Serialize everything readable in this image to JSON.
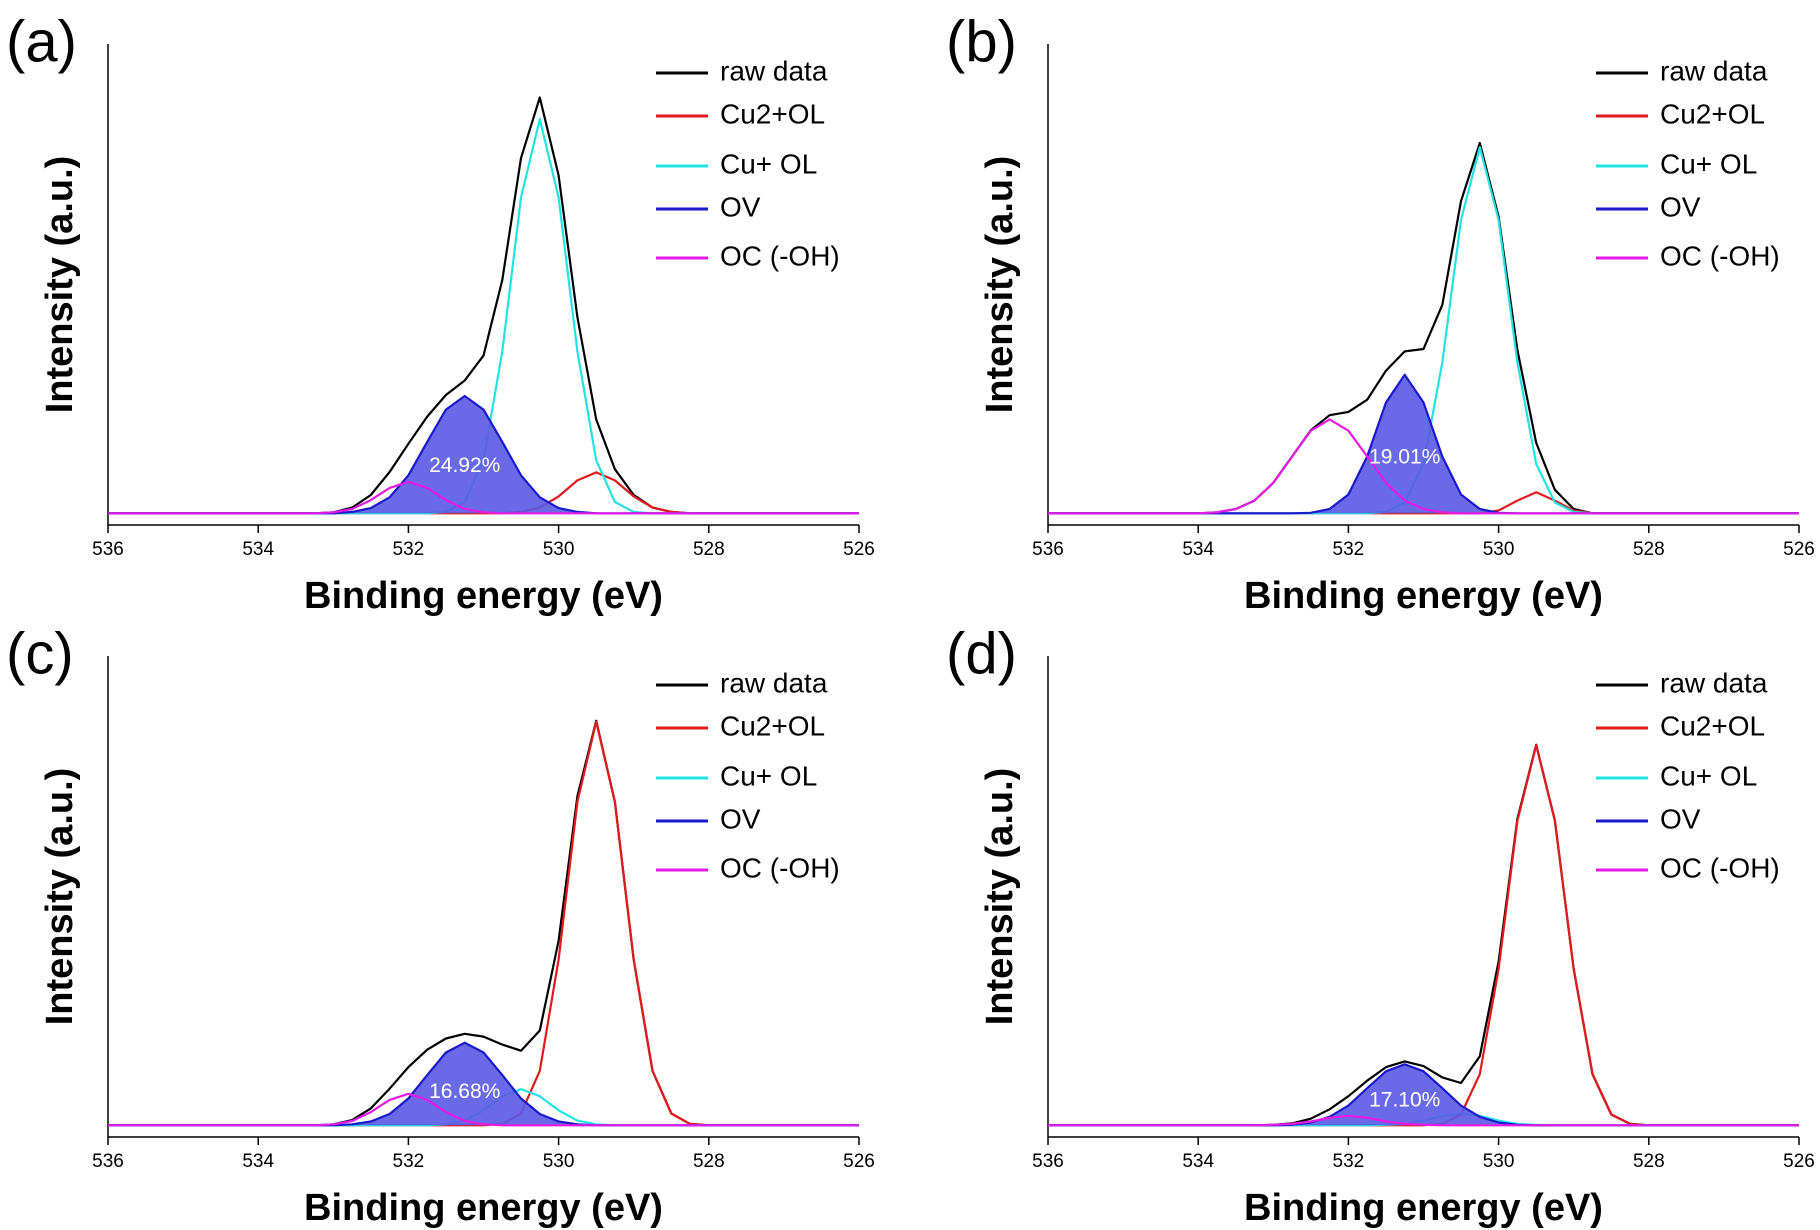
{
  "chart_data": [
    {
      "type": "line",
      "panel_label": "(a)",
      "xlabel": "Binding energy (eV)",
      "ylabel": "Intensity (a.u.)",
      "annotation": "24.92%",
      "xlim": [
        536,
        526
      ],
      "xticks": [
        536,
        534,
        532,
        530,
        528,
        526
      ],
      "ylim": [
        -2.5,
        100
      ],
      "legend": "upper right",
      "x": [
        536,
        535.75,
        535.5,
        535.25,
        535,
        534.75,
        534.5,
        534.25,
        534,
        533.75,
        533.5,
        533.25,
        533,
        532.75,
        532.5,
        532.25,
        532,
        531.75,
        531.5,
        531.25,
        531,
        530.75,
        530.5,
        530.25,
        530,
        529.75,
        529.5,
        529.25,
        529,
        528.75,
        528.5,
        528.25,
        528,
        527.75,
        527.5,
        527.25,
        527,
        526.75,
        526.5,
        526.25,
        526
      ],
      "series": [
        {
          "name": "raw data",
          "color": "#000000",
          "values": [
            0,
            0,
            0,
            0,
            0,
            0,
            0,
            0,
            0,
            0,
            0,
            0,
            0.2,
            1.2,
            3.9,
            8.8,
            14.8,
            20.6,
            25.2,
            28.3,
            33.6,
            49.7,
            75.7,
            88.6,
            72.0,
            41.8,
            20.0,
            9.4,
            3.9,
            1.2,
            0.3,
            0,
            0,
            0,
            0,
            0,
            0,
            0,
            0,
            0,
            0
          ]
        },
        {
          "name": "Cu2+OL",
          "color": "#e31a1c",
          "values": [
            0,
            0,
            0,
            0,
            0,
            0,
            0,
            0,
            0,
            0,
            0,
            0,
            0,
            0,
            0,
            0,
            0,
            0,
            0,
            0,
            0,
            0,
            0.3,
            1.2,
            3.6,
            7.0,
            8.7,
            7.0,
            3.6,
            1.2,
            0.3,
            0,
            0,
            0,
            0,
            0,
            0,
            0,
            0,
            0,
            0
          ]
        },
        {
          "name": "Cu+ OL",
          "color": "#22e3e3",
          "values": [
            0,
            0,
            0,
            0,
            0,
            0,
            0,
            0,
            0,
            0,
            0,
            0,
            0,
            0,
            0,
            0,
            0,
            0,
            0.3,
            2.4,
            11.3,
            34.5,
            67.3,
            84,
            67.3,
            34.5,
            11.3,
            2.4,
            0.3,
            0,
            0,
            0,
            0,
            0,
            0,
            0,
            0,
            0,
            0,
            0,
            0
          ]
        },
        {
          "name": "OV",
          "color": "#1a1acc",
          "fill": "#5a5ae6",
          "values": [
            0,
            0,
            0,
            0,
            0,
            0,
            0,
            0,
            0,
            0,
            0,
            0,
            0,
            0.3,
            1.1,
            3.4,
            8.1,
            15.2,
            22.1,
            25,
            22.1,
            15.2,
            8.1,
            3.4,
            1.1,
            0.3,
            0,
            0,
            0,
            0,
            0,
            0,
            0,
            0,
            0,
            0,
            0,
            0,
            0,
            0,
            0
          ]
        },
        {
          "name": "OC (-OH)",
          "color": "#e619e6",
          "values": [
            0,
            0,
            0,
            0,
            0,
            0,
            0,
            0,
            0,
            0,
            0,
            0,
            0.2,
            0.9,
            2.8,
            5.4,
            6.7,
            5.4,
            2.8,
            0.9,
            0.2,
            0,
            0,
            0,
            0,
            0,
            0,
            0,
            0,
            0,
            0,
            0,
            0,
            0,
            0,
            0,
            0,
            0,
            0,
            0,
            0
          ]
        }
      ]
    },
    {
      "type": "line",
      "panel_label": "(b)",
      "xlabel": "Binding energy (eV)",
      "ylabel": "Intensity (a.u.)",
      "annotation": "19.01%",
      "xlim": [
        536,
        526
      ],
      "xticks": [
        536,
        534,
        532,
        530,
        528,
        526
      ],
      "ylim": [
        -2.5,
        100
      ],
      "legend": "upper right",
      "x": [
        536,
        535.75,
        535.5,
        535.25,
        535,
        534.75,
        534.5,
        534.25,
        534,
        533.75,
        533.5,
        533.25,
        533,
        532.75,
        532.5,
        532.25,
        532,
        531.75,
        531.5,
        531.25,
        531,
        530.75,
        530.5,
        530.25,
        530,
        529.75,
        529.5,
        529.25,
        529,
        528.75,
        528.5,
        528.25,
        528,
        527.75,
        527.5,
        527.25,
        527,
        526.75,
        526.5,
        526.25,
        526
      ],
      "series": [
        {
          "name": "raw data",
          "color": "#000000",
          "values": [
            0,
            0,
            0,
            0,
            0,
            0,
            0,
            0,
            0,
            0.2,
            0.9,
            2.7,
            6.5,
            12.1,
            17.7,
            20.9,
            21.6,
            24.2,
            30.4,
            34.5,
            35.0,
            44.4,
            66.5,
            78.9,
            63.2,
            34.8,
            15.0,
            5.0,
            0.9,
            0,
            0,
            0,
            0,
            0,
            0,
            0,
            0,
            0,
            0,
            0,
            0
          ]
        },
        {
          "name": "Cu2+OL",
          "color": "#e31a1c",
          "values": [
            0,
            0,
            0,
            0,
            0,
            0,
            0,
            0,
            0,
            0,
            0,
            0,
            0,
            0,
            0,
            0,
            0,
            0,
            0,
            0,
            0,
            0,
            0,
            0,
            0.6,
            2.7,
            4.5,
            2.7,
            0.6,
            0,
            0,
            0,
            0,
            0,
            0,
            0,
            0,
            0,
            0,
            0,
            0
          ]
        },
        {
          "name": "Cu+ OL",
          "color": "#22e3e3",
          "values": [
            0,
            0,
            0,
            0,
            0,
            0,
            0,
            0,
            0,
            0,
            0,
            0,
            0,
            0,
            0,
            0,
            0,
            0,
            0.3,
            2.3,
            10.5,
            32.1,
            62.5,
            78,
            62.5,
            32.1,
            10.5,
            2.3,
            0.3,
            0,
            0,
            0,
            0,
            0,
            0,
            0,
            0,
            0,
            0,
            0,
            0
          ]
        },
        {
          "name": "OV",
          "color": "#1a1acc",
          "fill": "#5a5ae6",
          "values": [
            0,
            0,
            0,
            0,
            0,
            0,
            0,
            0,
            0,
            0,
            0,
            0,
            0,
            0,
            0.1,
            0.9,
            4.0,
            12.1,
            23.6,
            29.5,
            23.6,
            12.1,
            4.0,
            0.9,
            0.1,
            0,
            0,
            0,
            0,
            0,
            0,
            0,
            0,
            0,
            0,
            0,
            0,
            0,
            0,
            0,
            0
          ]
        },
        {
          "name": "OC (-OH)",
          "color": "#e619e6",
          "values": [
            0,
            0,
            0,
            0,
            0,
            0,
            0,
            0,
            0,
            0.2,
            0.9,
            2.7,
            6.5,
            12.1,
            17.6,
            20,
            17.6,
            12.1,
            6.5,
            2.7,
            0.9,
            0.2,
            0,
            0,
            0,
            0,
            0,
            0,
            0,
            0,
            0,
            0,
            0,
            0,
            0,
            0,
            0,
            0,
            0,
            0,
            0
          ]
        }
      ]
    },
    {
      "type": "line",
      "panel_label": "(c)",
      "xlabel": "Binding energy (eV)",
      "ylabel": "Intensity (a.u.)",
      "annotation": "16.68%",
      "xlim": [
        536,
        526
      ],
      "xticks": [
        536,
        534,
        532,
        530,
        528,
        526
      ],
      "ylim": [
        -2.5,
        100
      ],
      "legend": "upper right",
      "x": [
        536,
        535.75,
        535.5,
        535.25,
        535,
        534.75,
        534.5,
        534.25,
        534,
        533.75,
        533.5,
        533.25,
        533,
        532.75,
        532.5,
        532.25,
        532,
        531.75,
        531.5,
        531.25,
        531,
        530.75,
        530.5,
        530.25,
        530,
        529.75,
        529.5,
        529.25,
        529,
        528.75,
        528.5,
        528.25,
        528,
        527.75,
        527.5,
        527.25,
        527,
        526.75,
        526.5,
        526.25,
        526
      ],
      "series": [
        {
          "name": "raw data",
          "color": "#000000",
          "values": [
            0,
            0,
            0,
            0,
            0,
            0,
            0,
            0,
            0,
            0,
            0,
            0,
            0.2,
            1.1,
            3.6,
            7.8,
            12.4,
            16.1,
            18.5,
            19.5,
            18.9,
            17.2,
            15.9,
            20.2,
            39.3,
            70.1,
            86.2,
            68.9,
            35.3,
            11.6,
            2.5,
            0.3,
            0,
            0,
            0,
            0,
            0,
            0,
            0,
            0,
            0
          ]
        },
        {
          "name": "Cu2+OL",
          "color": "#e31a1c",
          "values": [
            0,
            0,
            0,
            0,
            0,
            0,
            0,
            0,
            0,
            0,
            0,
            0,
            0,
            0,
            0,
            0,
            0,
            0,
            0,
            0,
            0,
            0.3,
            2.5,
            11.6,
            35.3,
            68.9,
            86,
            68.9,
            35.3,
            11.6,
            2.5,
            0.3,
            0,
            0,
            0,
            0,
            0,
            0,
            0,
            0,
            0
          ]
        },
        {
          "name": "Cu+ OL",
          "color": "#22e3e3",
          "values": [
            0,
            0,
            0,
            0,
            0,
            0,
            0,
            0,
            0,
            0,
            0,
            0,
            0,
            0,
            0,
            0,
            0,
            0,
            0.2,
            1.0,
            3.2,
            6.2,
            7.7,
            6.2,
            3.2,
            1.0,
            0.2,
            0,
            0,
            0,
            0,
            0,
            0,
            0,
            0,
            0,
            0,
            0,
            0,
            0,
            0
          ]
        },
        {
          "name": "OV",
          "color": "#1a1acc",
          "fill": "#5a5ae6",
          "values": [
            0,
            0,
            0,
            0,
            0,
            0,
            0,
            0,
            0,
            0,
            0,
            0,
            0,
            0.2,
            0.8,
            2.4,
            5.7,
            10.7,
            15.5,
            17.6,
            15.5,
            10.7,
            5.7,
            2.4,
            0.8,
            0.2,
            0,
            0,
            0,
            0,
            0,
            0,
            0,
            0,
            0,
            0,
            0,
            0,
            0,
            0,
            0
          ]
        },
        {
          "name": "OC (-OH)",
          "color": "#e619e6",
          "values": [
            0,
            0,
            0,
            0,
            0,
            0,
            0,
            0,
            0,
            0,
            0,
            0,
            0.2,
            0.9,
            2.8,
            5.4,
            6.7,
            5.4,
            2.8,
            0.9,
            0.2,
            0,
            0,
            0,
            0,
            0,
            0,
            0,
            0,
            0,
            0,
            0,
            0,
            0,
            0,
            0,
            0,
            0,
            0,
            0,
            0
          ]
        }
      ]
    },
    {
      "type": "line",
      "panel_label": "(d)",
      "xlabel": "Binding energy (eV)",
      "ylabel": "Intensity (a.u.)",
      "annotation": "17.10%",
      "xlim": [
        536,
        526
      ],
      "xticks": [
        536,
        534,
        532,
        530,
        528,
        526
      ],
      "ylim": [
        -2.5,
        100
      ],
      "legend": "upper right",
      "x": [
        536,
        535.75,
        535.5,
        535.25,
        535,
        534.75,
        534.5,
        534.25,
        534,
        533.75,
        533.5,
        533.25,
        533,
        532.75,
        532.5,
        532.25,
        532,
        531.75,
        531.5,
        531.25,
        531,
        530.75,
        530.5,
        530.25,
        530,
        529.75,
        529.5,
        529.25,
        529,
        528.75,
        528.5,
        528.25,
        528,
        527.75,
        527.5,
        527.25,
        527,
        526.75,
        526.5,
        526.25,
        526
      ],
      "series": [
        {
          "name": "raw data",
          "color": "#000000",
          "values": [
            0,
            0,
            0,
            0,
            0,
            0,
            0,
            0,
            0,
            0,
            0,
            0,
            0.1,
            0.4,
            1.4,
            3.4,
            6.2,
            9.5,
            12.4,
            13.6,
            12.6,
            10.2,
            9.0,
            14.7,
            34.9,
            65.3,
            81.1,
            64.9,
            33.3,
            10.9,
            2.3,
            0.3,
            0,
            0,
            0,
            0,
            0,
            0,
            0,
            0,
            0
          ]
        },
        {
          "name": "Cu2+OL",
          "color": "#e31a1c",
          "values": [
            0,
            0,
            0,
            0,
            0,
            0,
            0,
            0,
            0,
            0,
            0,
            0,
            0,
            0,
            0,
            0,
            0,
            0,
            0,
            0,
            0,
            0.3,
            2.3,
            10.9,
            33.3,
            64.9,
            81,
            64.9,
            33.3,
            10.9,
            2.3,
            0.3,
            0,
            0,
            0,
            0,
            0,
            0,
            0,
            0,
            0
          ]
        },
        {
          "name": "Cu+ OL",
          "color": "#22e3e3",
          "values": [
            0,
            0,
            0,
            0,
            0,
            0,
            0,
            0,
            0,
            0,
            0,
            0,
            0,
            0,
            0,
            0,
            0,
            0,
            0.1,
            0.3,
            1.0,
            2.0,
            2.5,
            2.0,
            1.0,
            0.3,
            0.1,
            0,
            0,
            0,
            0,
            0,
            0,
            0,
            0,
            0,
            0,
            0,
            0,
            0,
            0
          ]
        },
        {
          "name": "OV",
          "color": "#1a1acc",
          "fill": "#5a5ae6",
          "values": [
            0,
            0,
            0,
            0,
            0,
            0,
            0,
            0,
            0,
            0,
            0,
            0,
            0,
            0.1,
            0.6,
            1.8,
            4.2,
            7.9,
            11.5,
            13,
            11.5,
            7.9,
            4.2,
            1.8,
            0.6,
            0.1,
            0,
            0,
            0,
            0,
            0,
            0,
            0,
            0,
            0,
            0,
            0,
            0,
            0,
            0,
            0
          ]
        },
        {
          "name": "OC (-OH)",
          "color": "#e619e6",
          "values": [
            0,
            0,
            0,
            0,
            0,
            0,
            0,
            0,
            0,
            0,
            0,
            0,
            0.1,
            0.3,
            0.8,
            1.6,
            2,
            1.6,
            0.8,
            0.3,
            0.1,
            0,
            0,
            0,
            0,
            0,
            0,
            0,
            0,
            0,
            0,
            0,
            0,
            0,
            0,
            0,
            0,
            0,
            0,
            0,
            0
          ]
        }
      ]
    }
  ]
}
